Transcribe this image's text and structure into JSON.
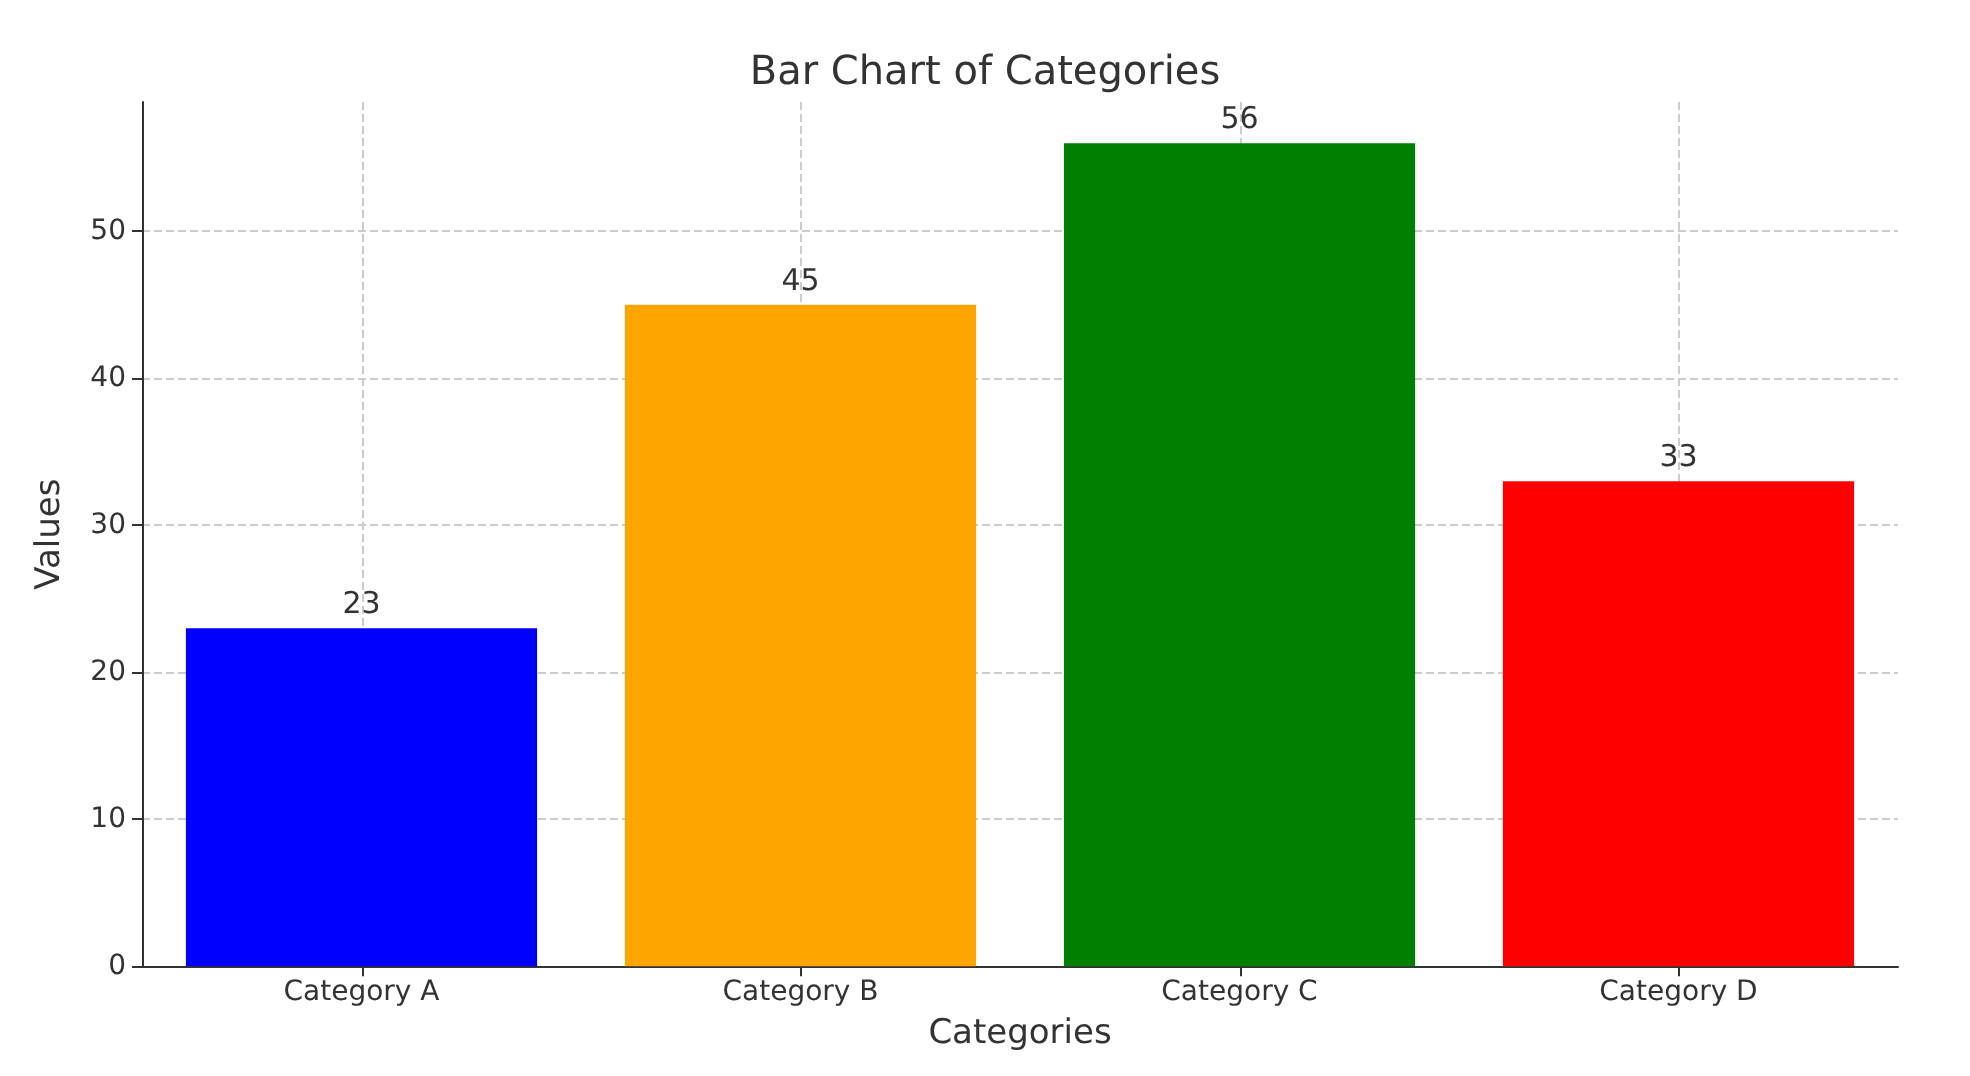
{
  "chart_data": {
    "type": "bar",
    "title": "Bar Chart of Categories",
    "xlabel": "Categories",
    "ylabel": "Values",
    "categories": [
      "Category A",
      "Category B",
      "Category C",
      "Category D"
    ],
    "values": [
      23,
      45,
      56,
      33
    ],
    "colors": [
      "#0000ff",
      "#ffa500",
      "#008000",
      "#ff0000"
    ],
    "ylim": [
      0,
      58.8
    ],
    "yticks": [
      0,
      10,
      20,
      30,
      40,
      50
    ],
    "grid": true,
    "data_labels": true
  }
}
